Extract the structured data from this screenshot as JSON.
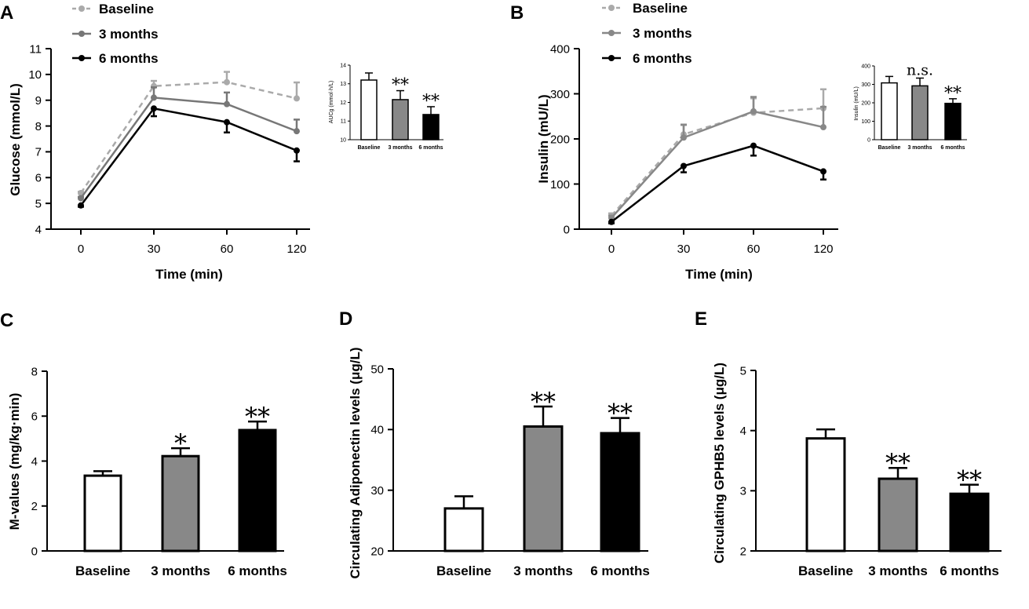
{
  "chart_data": [
    {
      "panel": "A",
      "type": "line",
      "xlabel": "Time (min)",
      "ylabel": "Glucose (mmol/L)",
      "x": [
        0,
        30,
        60,
        120
      ],
      "x_tick_labels": [
        "0",
        "30",
        "60",
        "120"
      ],
      "ylim": [
        4,
        11
      ],
      "y_ticks": [
        4,
        5,
        6,
        7,
        8,
        9,
        10,
        11
      ],
      "series": [
        {
          "name": "Baseline",
          "values": [
            5.4,
            9.55,
            9.7,
            9.07
          ],
          "errors": [
            0.05,
            0.2,
            0.4,
            0.62
          ],
          "color": "#aaaaaa",
          "dashed": true
        },
        {
          "name": "3 months",
          "values": [
            5.2,
            9.1,
            8.85,
            7.8
          ],
          "errors": [
            0.05,
            0.4,
            0.45,
            0.45
          ],
          "color": "#777777",
          "dashed": false
        },
        {
          "name": "6 months",
          "values": [
            4.92,
            8.68,
            8.15,
            7.05
          ],
          "errors": [
            0.05,
            0.3,
            0.4,
            0.42
          ],
          "color": "#000000",
          "dashed": false
        }
      ],
      "inset": {
        "type": "bar",
        "ylabel": "AUCg (mmol·h/L)",
        "categories": [
          "Baseline",
          "3 months",
          "6 months"
        ],
        "values": [
          13.2,
          12.15,
          11.35
        ],
        "errors": [
          0.38,
          0.48,
          0.42
        ],
        "colors": [
          "#ffffff",
          "#888888",
          "#000000"
        ],
        "ylim": [
          10,
          14
        ],
        "y_ticks": [
          10,
          11,
          12,
          13,
          14
        ],
        "annotations": [
          "",
          "**",
          "**"
        ]
      }
    },
    {
      "panel": "B",
      "type": "line",
      "xlabel": "Time (min)",
      "ylabel": "Insulin (mU/L)",
      "x": [
        0,
        30,
        60,
        120
      ],
      "x_tick_labels": [
        "0",
        "30",
        "60",
        "120"
      ],
      "ylim": [
        0,
        400
      ],
      "y_ticks": [
        0,
        100,
        200,
        300,
        400
      ],
      "series": [
        {
          "name": "Baseline",
          "values": [
            30,
            210,
            258,
            268
          ],
          "errors": [
            5,
            22,
            32,
            42
          ],
          "color": "#aaaaaa",
          "dashed": true
        },
        {
          "name": "3 months",
          "values": [
            25,
            203,
            261,
            226
          ],
          "errors": [
            5,
            28,
            32,
            45
          ],
          "color": "#888888",
          "dashed": false
        },
        {
          "name": "6 months",
          "values": [
            16,
            140,
            185,
            128
          ],
          "errors": [
            3,
            14,
            22,
            18
          ],
          "color": "#000000",
          "dashed": false
        }
      ],
      "inset": {
        "type": "bar",
        "ylabel": "Insulin (mU/L)",
        "categories": [
          "Baseline",
          "3 months",
          "6 months"
        ],
        "values": [
          308,
          292,
          197
        ],
        "errors": [
          35,
          42,
          25
        ],
        "colors": [
          "#ffffff",
          "#888888",
          "#000000"
        ],
        "ylim": [
          0,
          400
        ],
        "y_ticks": [
          0,
          100,
          200,
          300,
          400
        ],
        "annotations": [
          "",
          "n.s.",
          "**"
        ]
      }
    },
    {
      "panel": "C",
      "type": "bar",
      "ylabel": "M-values (mg/kg·min)",
      "categories": [
        "Baseline",
        "3 months",
        "6 months"
      ],
      "values": [
        3.35,
        4.22,
        5.38
      ],
      "errors": [
        0.2,
        0.35,
        0.38
      ],
      "colors": [
        "#ffffff",
        "#888888",
        "#000000"
      ],
      "ylim": [
        0,
        8
      ],
      "y_ticks": [
        0,
        2,
        4,
        6,
        8
      ],
      "annotations": [
        "",
        "*",
        "**"
      ]
    },
    {
      "panel": "D",
      "type": "bar",
      "ylabel": "Circulating Adiponectin levels (μg/L)",
      "categories": [
        "Baseline",
        "3 months",
        "6 months"
      ],
      "values": [
        27,
        40.5,
        39.4
      ],
      "errors": [
        2,
        3.3,
        2.5
      ],
      "colors": [
        "#ffffff",
        "#888888",
        "#000000"
      ],
      "ylim": [
        20,
        50
      ],
      "y_ticks": [
        20,
        30,
        40,
        50
      ],
      "annotations": [
        "",
        "**",
        "**"
      ]
    },
    {
      "panel": "E",
      "type": "bar",
      "ylabel": "Circulating GPHB5 levels (μg/L)",
      "categories": [
        "Baseline",
        "3 months",
        "6 months"
      ],
      "values": [
        3.87,
        3.2,
        2.95
      ],
      "errors": [
        0.15,
        0.18,
        0.15
      ],
      "colors": [
        "#ffffff",
        "#888888",
        "#000000"
      ],
      "ylim": [
        2,
        5
      ],
      "y_ticks": [
        2,
        3,
        4,
        5
      ],
      "annotations": [
        "",
        "**",
        "**"
      ]
    }
  ]
}
